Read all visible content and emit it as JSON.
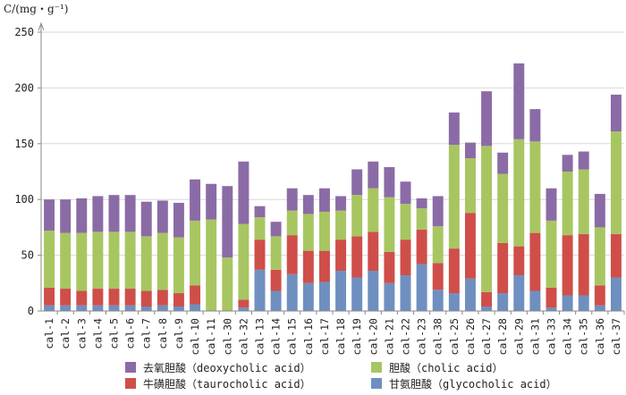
{
  "chart_data": {
    "type": "bar",
    "stacked": true,
    "ylabel": "C/(mg・g⁻¹)",
    "ylim": [
      0,
      250
    ],
    "yticks": [
      0,
      50,
      100,
      150,
      200,
      250
    ],
    "categories": [
      "cal-1",
      "cal-2",
      "cal-3",
      "cal-4",
      "cal-5",
      "cal-6",
      "cal-7",
      "cal-8",
      "cal-9",
      "cal-10",
      "cal-11",
      "cal-30",
      "cal-32",
      "cal-13",
      "cal-14",
      "cal-15",
      "cal-16",
      "cal-17",
      "cal-18",
      "cal-19",
      "cal-20",
      "cal-21",
      "cal-22",
      "cal-23",
      "cal-38",
      "cal-25",
      "cal-26",
      "cal-27",
      "cal-28",
      "cal-29",
      "cal-31",
      "cal-33",
      "cal-34",
      "cal-35",
      "cal-36",
      "cal-37"
    ],
    "series": [
      {
        "name": "甘氨胆酸（glycocholic acid）",
        "color": "#6f8fc0",
        "values": [
          5,
          5,
          5,
          5,
          5,
          5,
          4,
          5,
          4,
          6,
          0,
          0,
          3,
          37,
          18,
          33,
          25,
          26,
          36,
          30,
          36,
          25,
          32,
          42,
          19,
          16,
          29,
          4,
          16,
          32,
          18,
          3,
          14,
          14,
          5,
          30
        ]
      },
      {
        "name": "牛磺胆酸（taurocholic acid）",
        "color": "#cf4e4a",
        "values": [
          16,
          15,
          13,
          15,
          15,
          15,
          14,
          14,
          12,
          17,
          0,
          0,
          7,
          27,
          19,
          35,
          29,
          28,
          28,
          37,
          35,
          28,
          32,
          31,
          24,
          40,
          59,
          13,
          45,
          26,
          52,
          18,
          54,
          55,
          18,
          39
        ]
      },
      {
        "name": "胆酸（cholic acid）",
        "color": "#a7c661",
        "values": [
          51,
          50,
          52,
          51,
          51,
          51,
          49,
          51,
          50,
          58,
          82,
          48,
          68,
          20,
          30,
          22,
          33,
          35,
          26,
          37,
          39,
          49,
          32,
          19,
          33,
          93,
          49,
          131,
          62,
          96,
          82,
          60,
          57,
          58,
          52,
          92
        ]
      },
      {
        "name": "去氧胆酸（deoxycholic acid）",
        "color": "#8b6ba6",
        "values": [
          28,
          30,
          31,
          32,
          33,
          33,
          31,
          29,
          31,
          37,
          32,
          64,
          56,
          10,
          13,
          20,
          17,
          21,
          13,
          23,
          24,
          27,
          20,
          9,
          27,
          29,
          14,
          49,
          19,
          68,
          29,
          29,
          15,
          16,
          30,
          33
        ]
      }
    ],
    "legend": {
      "order": [
        3,
        2,
        1,
        0
      ],
      "placement": "bottom"
    }
  }
}
